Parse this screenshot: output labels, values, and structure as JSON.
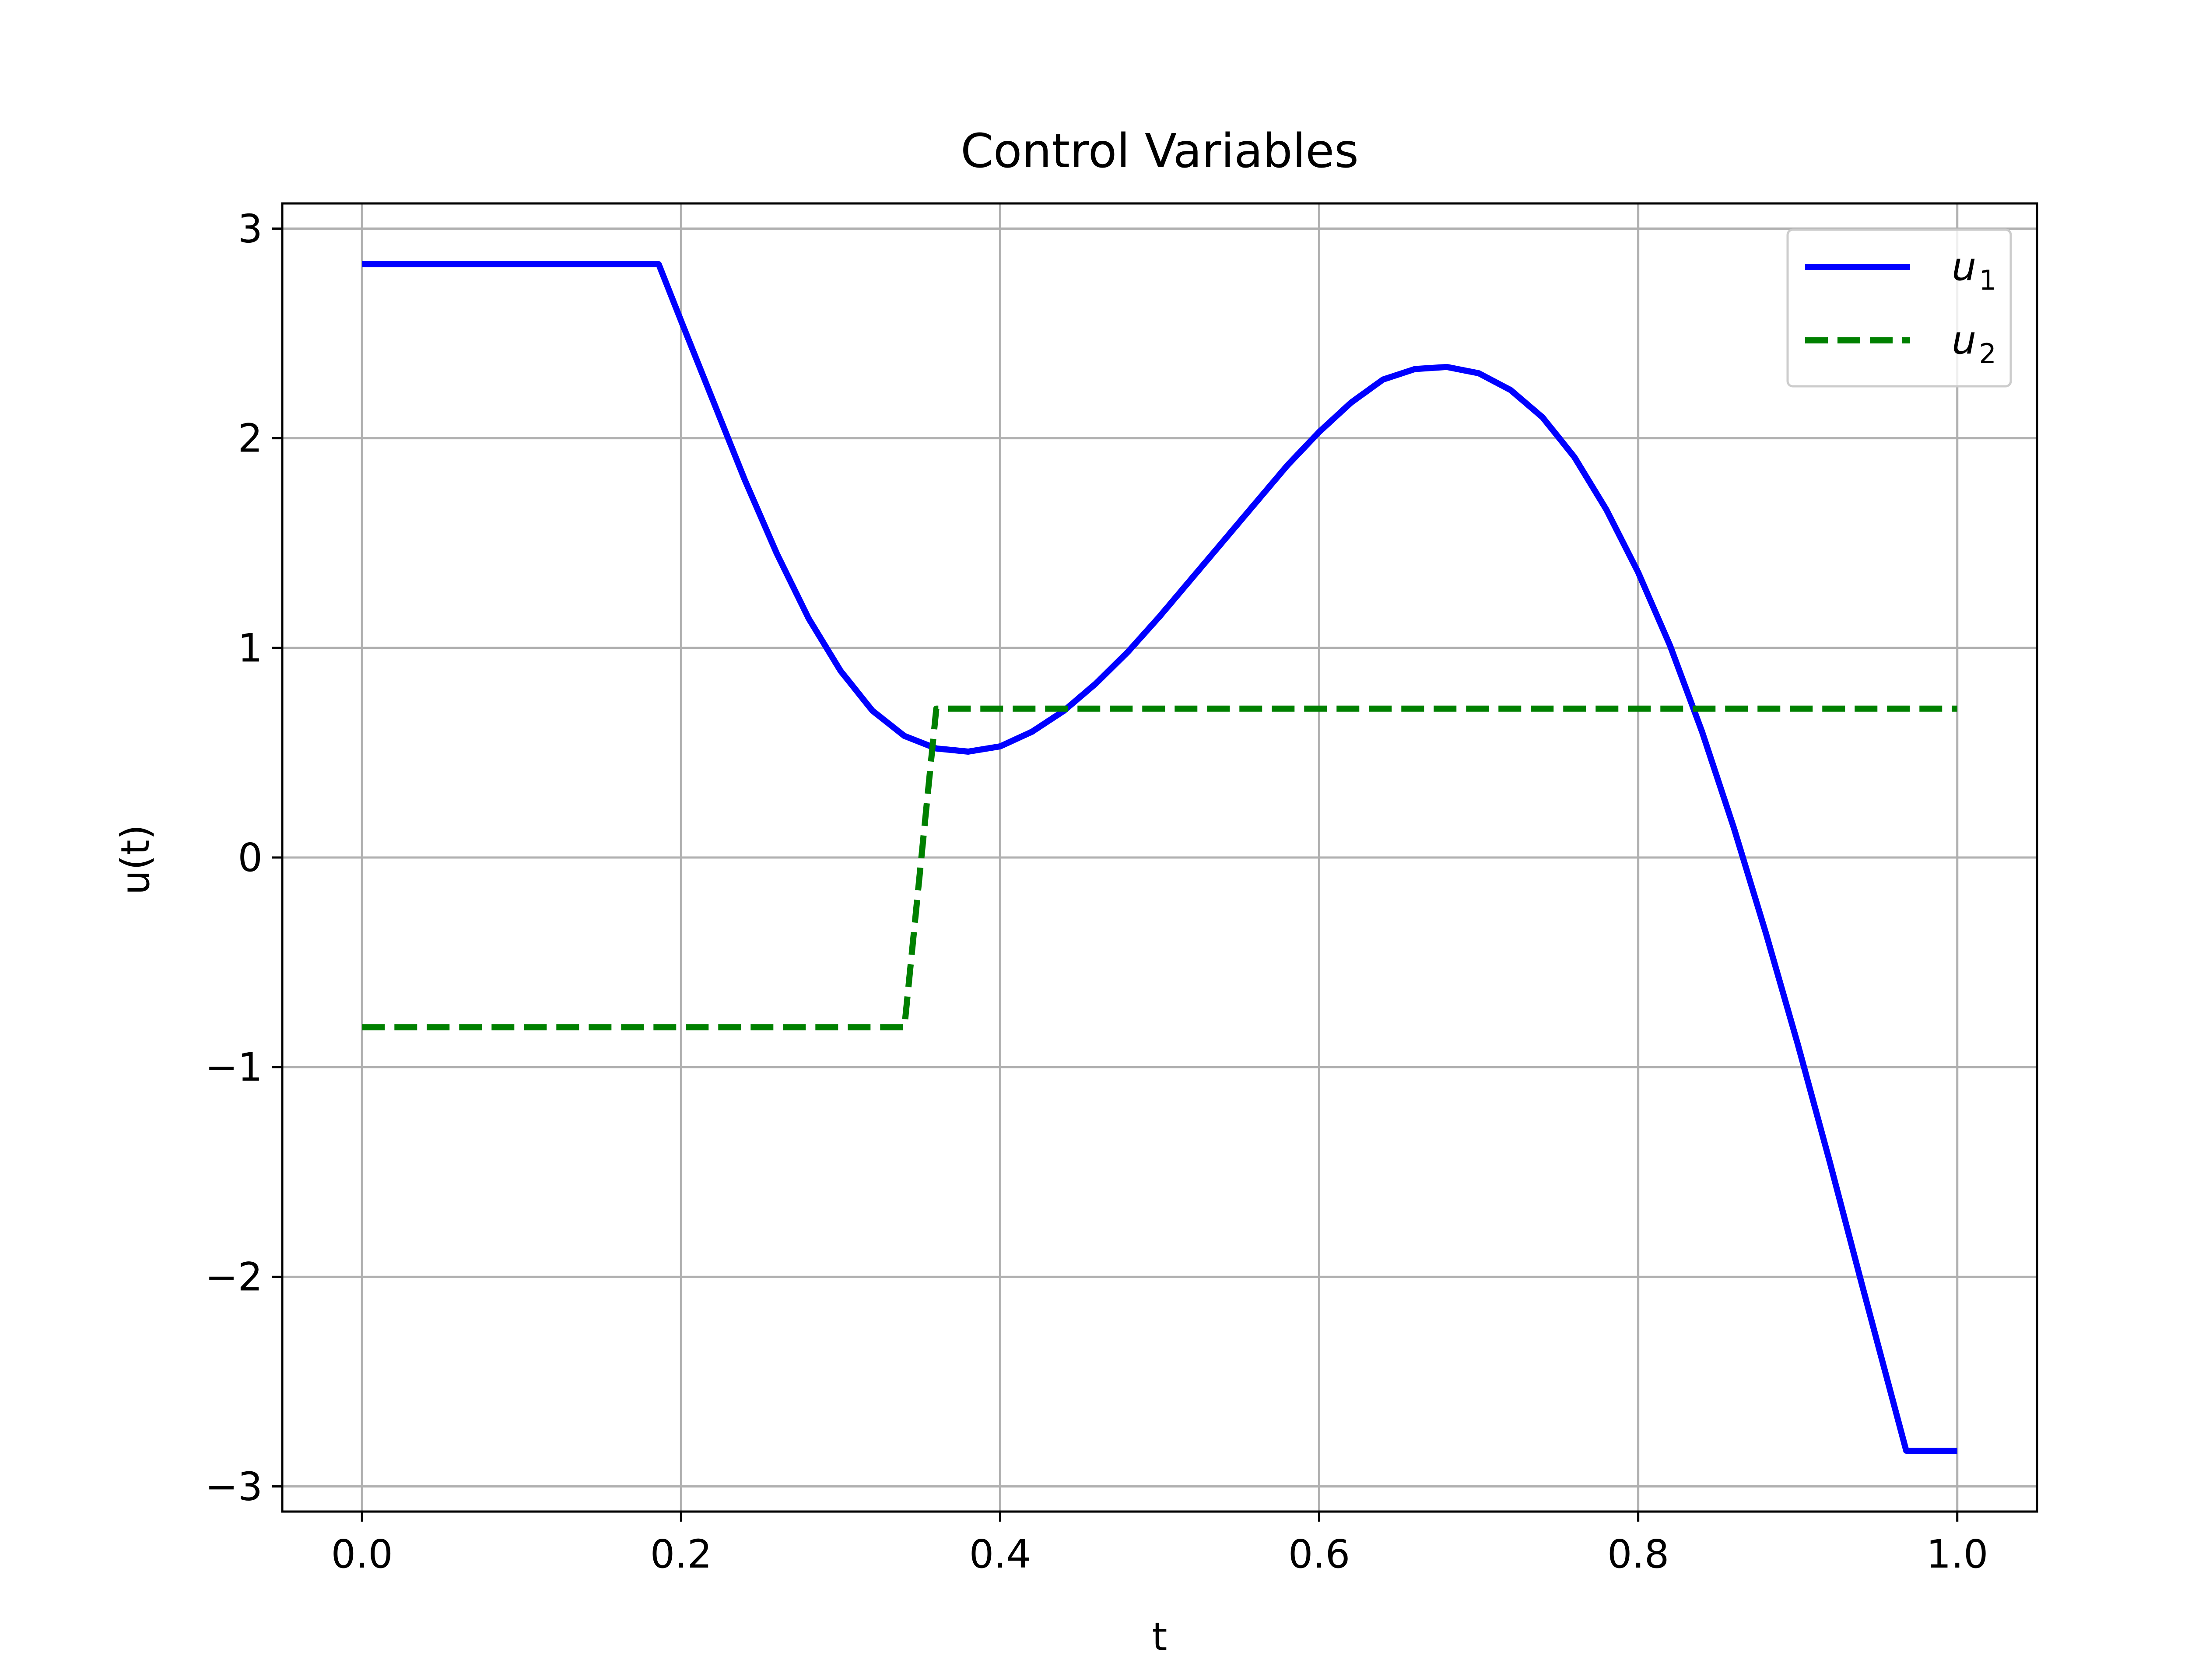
{
  "chart_data": {
    "type": "line",
    "title": "Control Variables",
    "xlabel": "t",
    "ylabel": "u(t)",
    "xlim": [
      -0.05,
      1.05
    ],
    "ylim": [
      -3.12,
      3.12
    ],
    "xticks": [
      0.0,
      0.2,
      0.4,
      0.6,
      0.8,
      1.0
    ],
    "xtick_labels": [
      "0.0",
      "0.2",
      "0.4",
      "0.6",
      "0.8",
      "1.0"
    ],
    "yticks": [
      -3,
      -2,
      -1,
      0,
      1,
      2,
      3
    ],
    "ytick_labels": [
      "−3",
      "−2",
      "−1",
      "0",
      "1",
      "2",
      "3"
    ],
    "grid": true,
    "legend_position": "top-right",
    "series": [
      {
        "name": "u",
        "subscript": "1",
        "color": "#0000ff",
        "style": "solid",
        "points": [
          [
            0.0,
            2.83
          ],
          [
            0.186,
            2.83
          ],
          [
            0.2,
            2.56
          ],
          [
            0.22,
            2.18
          ],
          [
            0.24,
            1.8
          ],
          [
            0.26,
            1.45
          ],
          [
            0.28,
            1.14
          ],
          [
            0.3,
            0.89
          ],
          [
            0.32,
            0.7
          ],
          [
            0.34,
            0.58
          ],
          [
            0.36,
            0.52
          ],
          [
            0.38,
            0.505
          ],
          [
            0.4,
            0.53
          ],
          [
            0.42,
            0.6
          ],
          [
            0.44,
            0.7
          ],
          [
            0.46,
            0.83
          ],
          [
            0.48,
            0.98
          ],
          [
            0.5,
            1.15
          ],
          [
            0.52,
            1.33
          ],
          [
            0.54,
            1.51
          ],
          [
            0.56,
            1.69
          ],
          [
            0.58,
            1.87
          ],
          [
            0.6,
            2.03
          ],
          [
            0.62,
            2.17
          ],
          [
            0.64,
            2.28
          ],
          [
            0.66,
            2.33
          ],
          [
            0.68,
            2.34
          ],
          [
            0.7,
            2.31
          ],
          [
            0.72,
            2.23
          ],
          [
            0.74,
            2.1
          ],
          [
            0.76,
            1.91
          ],
          [
            0.78,
            1.66
          ],
          [
            0.8,
            1.36
          ],
          [
            0.82,
            1.01
          ],
          [
            0.84,
            0.6
          ],
          [
            0.86,
            0.14
          ],
          [
            0.88,
            -0.36
          ],
          [
            0.9,
            -0.89
          ],
          [
            0.92,
            -1.45
          ],
          [
            0.94,
            -2.03
          ],
          [
            0.968,
            -2.83
          ],
          [
            1.0,
            -2.83
          ]
        ]
      },
      {
        "name": "u",
        "subscript": "2",
        "color": "#008000",
        "style": "dashed",
        "points": [
          [
            0.0,
            -0.81
          ],
          [
            0.34,
            -0.81
          ],
          [
            0.36,
            0.71
          ],
          [
            1.0,
            0.71
          ]
        ]
      }
    ]
  }
}
